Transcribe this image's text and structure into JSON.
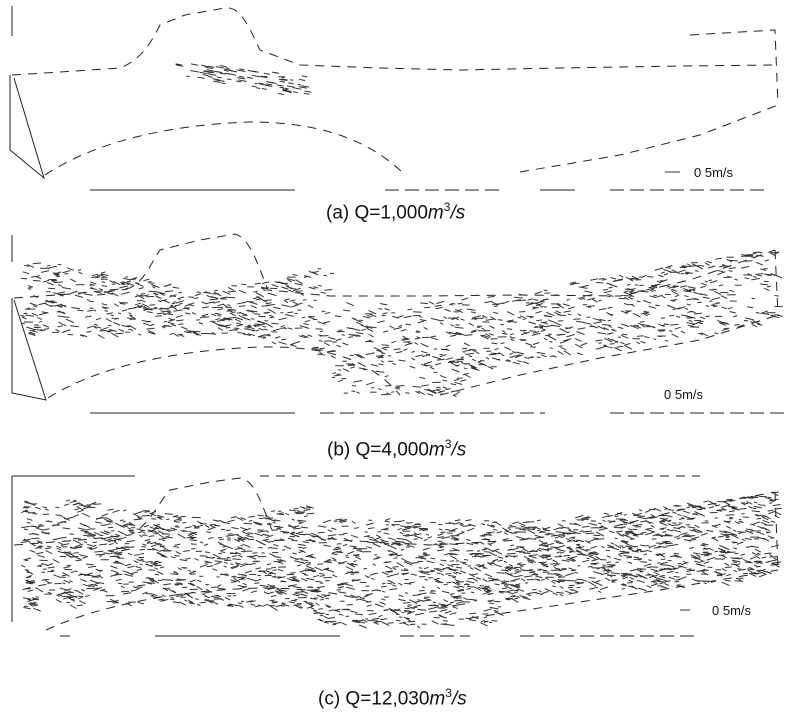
{
  "panels": [
    {
      "id": "a",
      "caption_prefix": "(a)  Q=1,000",
      "caption_unit": "m",
      "caption_exp": "3",
      "caption_suffix": "/s",
      "scale_label": "0 5m/s",
      "vector_density": 2
    },
    {
      "id": "b",
      "caption_prefix": "(b)  Q=4,000",
      "caption_unit": "m",
      "caption_exp": "3",
      "caption_suffix": "/s",
      "scale_label": "0 5m/s",
      "vector_density": 5
    },
    {
      "id": "c",
      "caption_prefix": "(c)  Q=12,030",
      "caption_unit": "m",
      "caption_exp": "3",
      "caption_suffix": "/s",
      "scale_label": "0 5m/s",
      "vector_density": 9
    }
  ]
}
